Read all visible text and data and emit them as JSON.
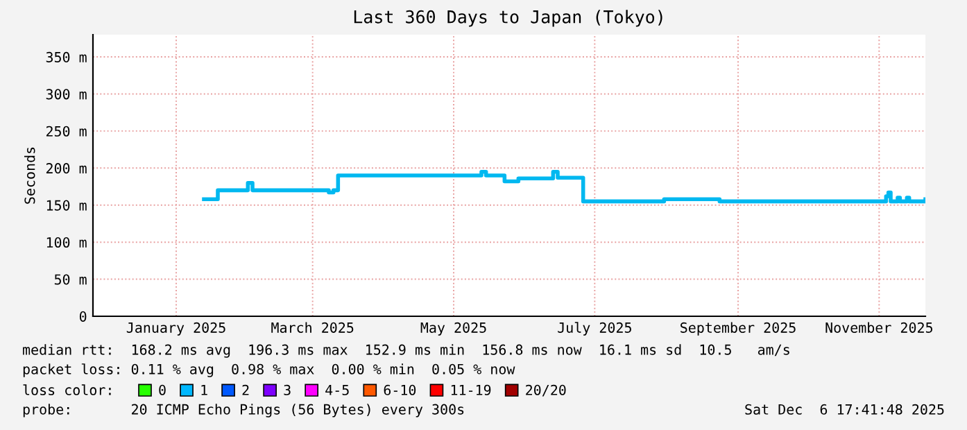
{
  "chart_data": {
    "type": "step",
    "title": "Last 360 Days to Japan (Tokyo)",
    "ylabel": "Seconds",
    "x": [
      "2025-01-28",
      "2025-02-03",
      "2025-02-16",
      "2025-02-18",
      "2025-03-23",
      "2025-03-25",
      "2025-03-27",
      "2025-05-28",
      "2025-05-30",
      "2025-06-07",
      "2025-06-13",
      "2025-06-28",
      "2025-06-30",
      "2025-07-11",
      "2025-08-15",
      "2025-09-08",
      "2025-11-19",
      "2025-11-20",
      "2025-11-21",
      "2025-11-24",
      "2025-11-25",
      "2025-11-28",
      "2025-11-29",
      "2025-12-06"
    ],
    "series": [
      {
        "color": "#00b8f0",
        "values": [
          158,
          170,
          180,
          170,
          167,
          170,
          190,
          195,
          190,
          182,
          186,
          195,
          187,
          155,
          158,
          155,
          162,
          167,
          155,
          160,
          155,
          160,
          155,
          158
        ]
      },
      {
        "name": "0",
        "color": "#26ff00",
        "values": [
          null,
          null,
          null,
          null,
          null,
          null,
          null,
          null,
          null,
          null,
          null,
          null,
          null,
          null,
          null,
          null,
          null,
          null,
          null,
          null,
          null,
          null,
          null,
          null
        ]
      },
      {
        "name": "1",
        "color": "#00b8ff",
        "values": [
          null,
          null,
          null,
          null,
          null,
          null,
          null,
          null,
          null,
          null,
          null,
          null,
          null,
          null,
          null,
          null,
          null,
          null,
          null,
          null,
          null,
          null,
          null,
          null
        ]
      },
      {
        "name": "2",
        "color": "#0059ff",
        "values": [
          null,
          null,
          null,
          null,
          null,
          null,
          null,
          null,
          null,
          null,
          null,
          null,
          null,
          null,
          null,
          null,
          null,
          null,
          null,
          null,
          null,
          null,
          null,
          null
        ]
      },
      {
        "name": "3",
        "color": "#7e00ff",
        "values": [
          null,
          null,
          null,
          null,
          null,
          null,
          null,
          null,
          null,
          null,
          null,
          null,
          null,
          null,
          null,
          null,
          null,
          null,
          null,
          null,
          null,
          null,
          null,
          null
        ]
      },
      {
        "name": "4-5",
        "color": "#ff00ff",
        "values": [
          null,
          null,
          null,
          null,
          null,
          null,
          null,
          null,
          null,
          null,
          null,
          null,
          null,
          null,
          null,
          null,
          null,
          null,
          null,
          null,
          null,
          null,
          null,
          null
        ]
      },
      {
        "name": "6-10",
        "color": "#ff5900",
        "values": [
          null,
          null,
          null,
          null,
          null,
          null,
          null,
          null,
          null,
          null,
          null,
          null,
          null,
          null,
          null,
          null,
          null,
          null,
          null,
          null,
          null,
          null,
          null,
          null
        ]
      },
      {
        "name": "11-19",
        "color": "#ff0000",
        "values": [
          null,
          null,
          null,
          null,
          null,
          null,
          null,
          null,
          null,
          null,
          null,
          null,
          null,
          null,
          null,
          null,
          null,
          null,
          null,
          null,
          null,
          null,
          null,
          null
        ]
      },
      {
        "name": "20/20",
        "color": "#a10000",
        "values": [
          null,
          null,
          null,
          null,
          null,
          null,
          null,
          null,
          null,
          null,
          null,
          null,
          null,
          null,
          null,
          null,
          null,
          null,
          null,
          null,
          null,
          null,
          null,
          null
        ]
      }
    ],
    "legend_title": "loss color:",
    "legend": "bottom",
    "xlim": [
      "2024-12-11",
      "2025-12-06"
    ],
    "xticks": [
      {
        "value": "2025-01-16",
        "label": "January 2025"
      },
      {
        "value": "2025-03-16",
        "label": "March 2025"
      },
      {
        "value": "2025-05-16",
        "label": "May 2025"
      },
      {
        "value": "2025-07-16",
        "label": "July 2025"
      },
      {
        "value": "2025-09-16",
        "label": "September 2025"
      },
      {
        "value": "2025-11-16",
        "label": "November 2025"
      }
    ],
    "ylim": [
      0,
      380
    ],
    "yticks": [
      0,
      {
        "value": 50,
        "label": "50 m"
      },
      {
        "value": 100,
        "label": "100 m"
      },
      {
        "value": 150,
        "label": "150 m"
      },
      {
        "value": 200,
        "label": "200 m"
      },
      {
        "value": 250,
        "label": "250 m"
      },
      {
        "value": 300,
        "label": "300 m"
      },
      {
        "value": 350,
        "label": "350 m"
      }
    ],
    "grid": true,
    "annotations": [
      "median rtt:  168.2 ms avg  196.3 ms max  152.9 ms min  156.8 ms now  16.1 ms sd  10.5   am/s",
      "packet loss: 0.11 % avg  0.98 % max  0.00 % min  0.05 % now",
      "probe:       20 ICMP Echo Pings (56 Bytes) every 300s",
      "Sat Dec  6 17:41:48 2025"
    ]
  }
}
